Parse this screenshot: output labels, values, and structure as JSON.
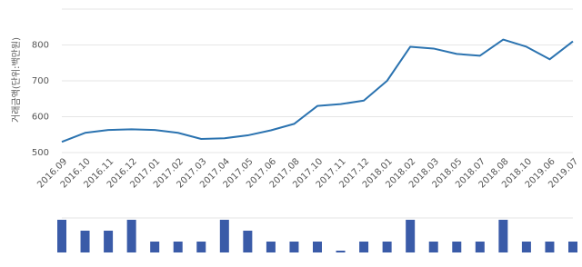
{
  "chart_data": {
    "type": "line",
    "y_label": "거래금액(단위:백만원)",
    "categories": [
      "2016.09",
      "2016.10",
      "2016.11",
      "2016.12",
      "2017.01",
      "2017.02",
      "2017.03",
      "2017.04",
      "2017.05",
      "2017.06",
      "2017.08",
      "2017.10",
      "2017.11",
      "2017.12",
      "2018.01",
      "2018.02",
      "2018.03",
      "2018.05",
      "2018.07",
      "2018.08",
      "2018.10",
      "2019.06",
      "2019.07"
    ],
    "series": [
      {
        "name": "거래금액",
        "color": "#2b73b0",
        "values": [
          530,
          555,
          563,
          565,
          563,
          555,
          538,
          540,
          548,
          562,
          580,
          630,
          635,
          645,
          700,
          795,
          790,
          775,
          770,
          815,
          795,
          760,
          810
        ]
      }
    ],
    "volume": {
      "color": "#3a5ba8",
      "values": [
        3,
        2,
        2,
        3,
        1,
        1,
        1,
        3,
        2,
        1,
        1,
        1,
        0,
        1,
        1,
        3,
        1,
        1,
        1,
        3,
        1,
        1,
        1
      ]
    },
    "ylim": [
      500,
      900
    ],
    "yticks": [
      500,
      600,
      700,
      800
    ],
    "grid": true
  }
}
